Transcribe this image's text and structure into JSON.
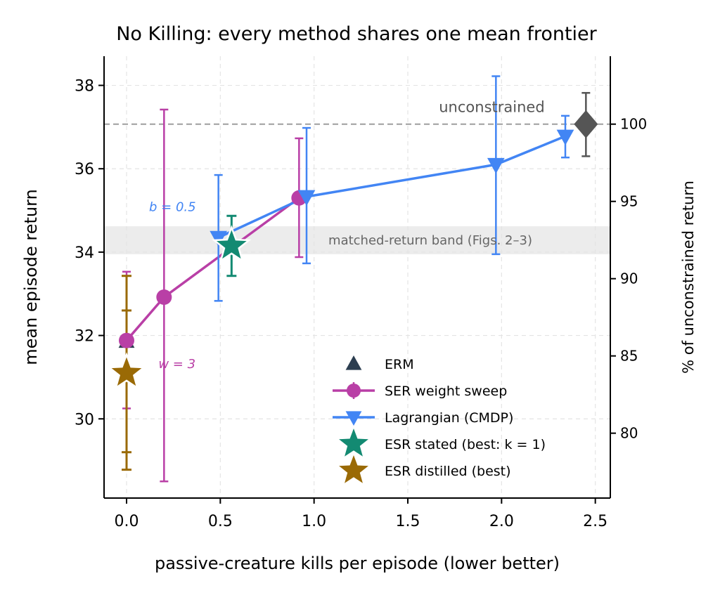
{
  "chart_data": {
    "type": "line",
    "title": "No Killing: every method shares one mean frontier",
    "xlabel": "passive-creature kills per episode (lower better)",
    "ylabel": "mean episode return",
    "ylabel_right": "% of unconstrained return",
    "xlim": [
      -0.12,
      2.58
    ],
    "ylim": [
      28.1,
      38.7
    ],
    "x_ticks": [
      0.0,
      0.5,
      1.0,
      1.5,
      2.0,
      2.5
    ],
    "x_tick_labels": [
      "0.0",
      "0.5",
      "1.0",
      "1.5",
      "2.0",
      "2.5"
    ],
    "y_ticks": [
      30,
      32,
      34,
      36,
      38
    ],
    "y_tick_labels": [
      "30",
      "32",
      "34",
      "36",
      "38"
    ],
    "y2_ticks": [
      80,
      85,
      90,
      95,
      100
    ],
    "y2_tick_labels": [
      "80",
      "85",
      "90",
      "95",
      "100"
    ],
    "grid": true,
    "legend_position": "lower-right",
    "unconstrained_return": 37.07,
    "reference_line": {
      "label": "unconstrained",
      "y": 37.07,
      "color": "#9e9e9e"
    },
    "band": {
      "label": "matched-return band (Figs. 2–3)",
      "y_range": [
        33.95,
        34.62
      ],
      "color": "#ececec"
    },
    "annotations": [
      {
        "text": "b = 0.5",
        "x": 0.12,
        "y": 34.98,
        "color": "#4285f4"
      },
      {
        "text": "w = 3",
        "x": 0.17,
        "y": 31.22,
        "color": "#b93fa6"
      }
    ],
    "series": [
      {
        "name": "ERM",
        "color": "#2c3e50",
        "marker": "triangle-up",
        "line": false,
        "points": [
          {
            "x": 0.0,
            "y": 31.85
          }
        ]
      },
      {
        "name": "SER weight sweep",
        "color": "#b93fa6",
        "marker": "circle",
        "line": true,
        "points": [
          {
            "x": 0.0,
            "y": 31.88,
            "yerr_low": 30.25,
            "yerr_high": 33.53
          },
          {
            "x": 0.2,
            "y": 32.92,
            "yerr_low": 28.5,
            "yerr_high": 37.42
          },
          {
            "x": 0.92,
            "y": 35.3,
            "yerr_low": 33.88,
            "yerr_high": 36.73
          }
        ]
      },
      {
        "name": "Lagrangian (CMDP)",
        "color": "#4285f4",
        "marker": "triangle-down",
        "line": true,
        "points": [
          {
            "x": 0.49,
            "y": 34.35,
            "yerr_low": 32.83,
            "yerr_high": 35.85
          },
          {
            "x": 0.96,
            "y": 35.33,
            "yerr_low": 33.73,
            "yerr_high": 36.98
          },
          {
            "x": 1.97,
            "y": 36.1,
            "yerr_low": 33.95,
            "yerr_high": 38.22
          },
          {
            "x": 2.34,
            "y": 36.78,
            "yerr_low": 36.27,
            "yerr_high": 37.27
          }
        ]
      },
      {
        "name": "ESR stated (best: k = 1)",
        "color": "#138a72",
        "marker": "star",
        "line": false,
        "points": [
          {
            "x": 0.56,
            "y": 34.15,
            "yerr_low": 33.43,
            "yerr_high": 34.87
          }
        ]
      },
      {
        "name": "ESR distilled (best)",
        "color": "#9a6a05",
        "marker": "star",
        "line": false,
        "points": [
          {
            "x": 0.0,
            "y": 31.1,
            "yerr_low": 28.78,
            "yerr_high": 33.43,
            "inner_low": 29.2,
            "inner_high": 32.6
          }
        ]
      },
      {
        "name": "",
        "color": "#555555",
        "marker": "diamond",
        "line": false,
        "points": [
          {
            "x": 2.45,
            "y": 37.07,
            "yerr_low": 36.3,
            "yerr_high": 37.82
          }
        ]
      }
    ]
  }
}
